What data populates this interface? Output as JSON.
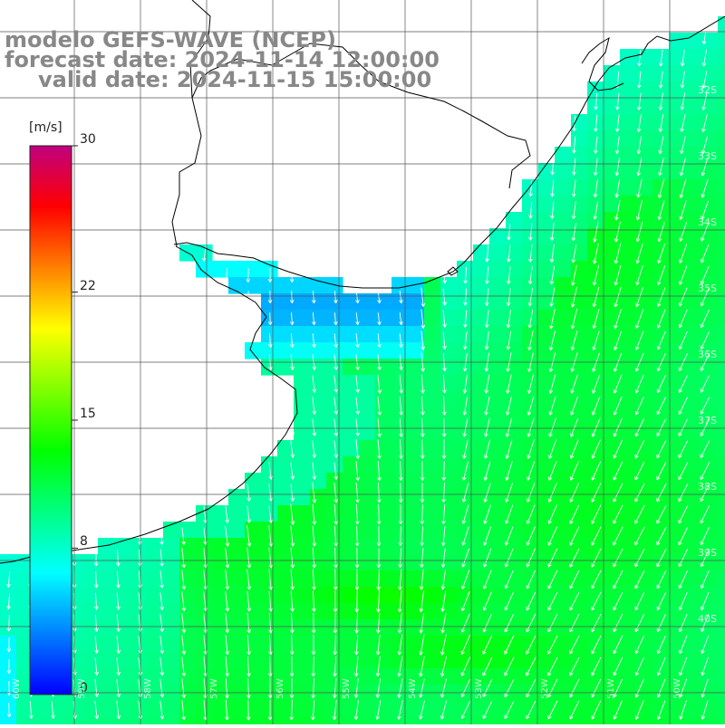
{
  "title": {
    "line1": "modelo GEFS-WAVE (NCEP)",
    "line2": "forecast date: 2024-11-14 12:00:00",
    "line3": "valid date: 2024-11-15 15:00:00"
  },
  "colorbar": {
    "unit": "[m/s]",
    "ticks": [
      {
        "label": "30",
        "value": 30
      },
      {
        "label": "22",
        "value": 22
      },
      {
        "label": "15",
        "value": 15
      },
      {
        "label": "8",
        "value": 8
      },
      {
        "label": "0",
        "value": 0
      }
    ],
    "stops": [
      "#0000ff",
      "#0080ff",
      "#00ffff",
      "#00ff80",
      "#00ff00",
      "#80ff00",
      "#ffff00",
      "#ff8000",
      "#ff0000",
      "#c00080"
    ]
  },
  "lat_labels": [
    "32S",
    "33S",
    "34S",
    "35S",
    "36S",
    "37S",
    "38S",
    "39S",
    "40S"
  ],
  "lon_labels": [
    "60W",
    "59W",
    "58W",
    "57W",
    "56W",
    "55W",
    "54W",
    "53W",
    "52W",
    "51W",
    "50W"
  ],
  "colors": {
    "land": "#ffffff",
    "coast": "#000000",
    "grid": "#555555",
    "arrow": "#ffffff",
    "text": "#888888"
  }
}
